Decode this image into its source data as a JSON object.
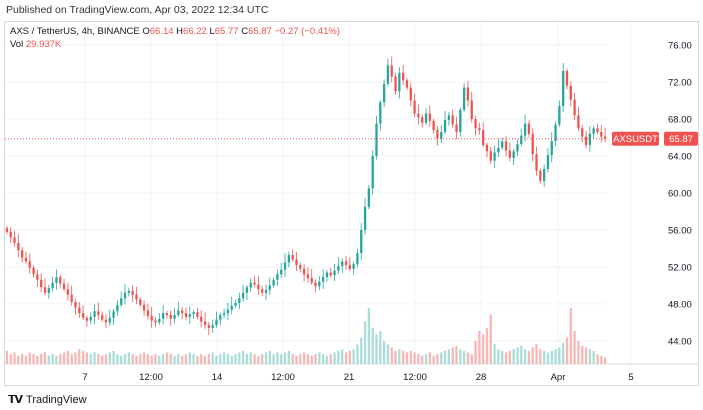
{
  "header": {
    "published": "Published on TradingView.com, Apr 03, 2022 12:34 UTC"
  },
  "legend": {
    "symbol": "AXS / TetherUS, 4h, BINANCE",
    "open_label": "O",
    "open": "66.14",
    "high_label": "H",
    "high": "66.22",
    "low_label": "L",
    "low": "65.77",
    "close_label": "C",
    "close": "65.87",
    "change": "−0.27 (−0.41%)"
  },
  "volume": {
    "label": "Vol",
    "value": "29.937K"
  },
  "price_badge": {
    "symbol": "AXSUSDT",
    "price": "65.87"
  },
  "footer": {
    "brand": "TradingView"
  },
  "colors": {
    "up": "#26a69a",
    "down": "#ef5350",
    "up_vol": "#a8ddd8",
    "down_vol": "#f7b7b5",
    "grid": "#f0f3fa"
  },
  "chart_data": {
    "type": "candlestick",
    "y_ticks": [
      "76.00",
      "72.00",
      "68.00",
      "64.00",
      "60.00",
      "56.00",
      "52.00",
      "48.00",
      "44.00"
    ],
    "x_ticks": [
      "7",
      "12:00",
      "14",
      "12:00",
      "21",
      "12:00",
      "28",
      "Apr",
      "5"
    ],
    "ylim": [
      41.5,
      78.5
    ],
    "last_price": 65.87,
    "closes": [
      55.8,
      55.2,
      54.6,
      53.8,
      53.0,
      52.6,
      51.9,
      51.2,
      50.6,
      49.8,
      49.2,
      49.7,
      50.3,
      50.9,
      50.2,
      49.6,
      49.0,
      48.2,
      47.6,
      47.0,
      46.5,
      46.2,
      46.6,
      47.2,
      46.8,
      46.3,
      46.0,
      46.5,
      47.2,
      47.9,
      48.6,
      49.2,
      49.4,
      49.0,
      48.5,
      47.9,
      47.3,
      46.7,
      46.2,
      46.0,
      46.4,
      47.0,
      46.8,
      46.4,
      46.8,
      47.3,
      47.0,
      46.6,
      46.9,
      47.1,
      46.6,
      46.1,
      45.7,
      45.4,
      45.7,
      46.3,
      46.8,
      47.0,
      47.4,
      47.8,
      48.1,
      48.6,
      49.2,
      49.8,
      50.3,
      50.1,
      49.6,
      49.2,
      49.5,
      50.0,
      50.6,
      51.2,
      51.7,
      52.5,
      53.3,
      52.8,
      52.2,
      51.8,
      51.2,
      50.8,
      50.3,
      49.9,
      50.4,
      50.9,
      51.4,
      51.1,
      51.6,
      52.1,
      52.6,
      52.2,
      51.8,
      52.3,
      53.5,
      56.0,
      58.5,
      60.5,
      64.0,
      67.5,
      69.8,
      71.8,
      73.8,
      72.6,
      71.0,
      73.0,
      72.2,
      71.4,
      70.0,
      68.6,
      68.2,
      67.6,
      68.6,
      67.8,
      66.8,
      65.9,
      66.6,
      67.9,
      68.4,
      67.4,
      66.6,
      69.0,
      71.4,
      70.0,
      68.0,
      67.0,
      66.8,
      65.2,
      64.5,
      63.5,
      64.4,
      64.9,
      65.6,
      64.6,
      63.8,
      64.5,
      65.3,
      66.2,
      67.5,
      66.4,
      64.2,
      62.4,
      61.3,
      62.6,
      64.1,
      65.6,
      67.4,
      69.4,
      73.2,
      71.6,
      70.1,
      68.4,
      67.0,
      66.1,
      65.2,
      66.4,
      67.0,
      66.6,
      66.1,
      65.87
    ],
    "volumes": [
      8,
      6,
      7,
      5,
      6,
      5,
      7,
      6,
      5,
      6,
      7,
      5,
      6,
      5,
      6,
      7,
      8,
      6,
      7,
      9,
      8,
      7,
      6,
      7,
      6,
      5,
      6,
      7,
      8,
      6,
      5,
      6,
      7,
      6,
      5,
      6,
      7,
      6,
      5,
      6,
      5,
      6,
      7,
      6,
      5,
      6,
      5,
      6,
      7,
      6,
      5,
      6,
      5,
      6,
      7,
      5,
      6,
      7,
      6,
      5,
      6,
      7,
      8,
      6,
      7,
      6,
      5,
      6,
      7,
      8,
      6,
      7,
      6,
      7,
      8,
      6,
      5,
      6,
      7,
      6,
      5,
      6,
      7,
      6,
      5,
      6,
      7,
      8,
      9,
      7,
      8,
      9,
      12,
      16,
      26,
      34,
      22,
      18,
      20,
      14,
      12,
      10,
      8,
      9,
      8,
      7,
      8,
      7,
      6,
      5,
      6,
      7,
      5,
      6,
      7,
      8,
      9,
      10,
      11,
      9,
      8,
      7,
      6,
      14,
      20,
      18,
      22,
      30,
      12,
      9,
      8,
      7,
      8,
      9,
      10,
      11,
      9,
      8,
      10,
      12,
      9,
      8,
      7,
      8,
      9,
      10,
      13,
      16,
      34,
      20,
      14,
      11,
      10,
      9,
      8,
      6,
      5,
      4
    ],
    "vol_max": 34
  }
}
